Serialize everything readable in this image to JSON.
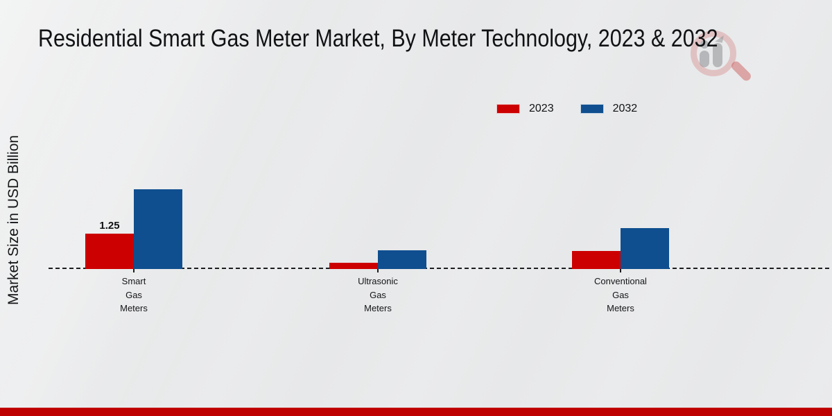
{
  "chart_data": {
    "type": "bar",
    "title": "Residential Smart Gas Meter Market, By Meter Technology, 2023 & 2032",
    "xlabel": "",
    "ylabel": "Market Size in USD Billion",
    "categories": [
      "Smart Gas Meters",
      "Ultrasonic Gas Meters",
      "Conventional Gas Meters"
    ],
    "series": [
      {
        "name": "2023",
        "color": "#cc0000",
        "values": [
          1.25,
          0.23,
          0.63
        ],
        "labels": [
          "1.25",
          "",
          ""
        ]
      },
      {
        "name": "2032",
        "color": "#0f4f8f",
        "values": [
          2.8,
          0.67,
          1.45
        ],
        "labels": [
          "",
          "",
          ""
        ]
      }
    ],
    "ylim": [
      0,
      3
    ],
    "y_axis_visible": false,
    "grid": false,
    "baseline_style": "dashed",
    "legend_position": "top-right"
  },
  "branding": {
    "logo_name": "magnifier-bar-chart-watermark",
    "footer_bar_color": "#bf0000"
  }
}
